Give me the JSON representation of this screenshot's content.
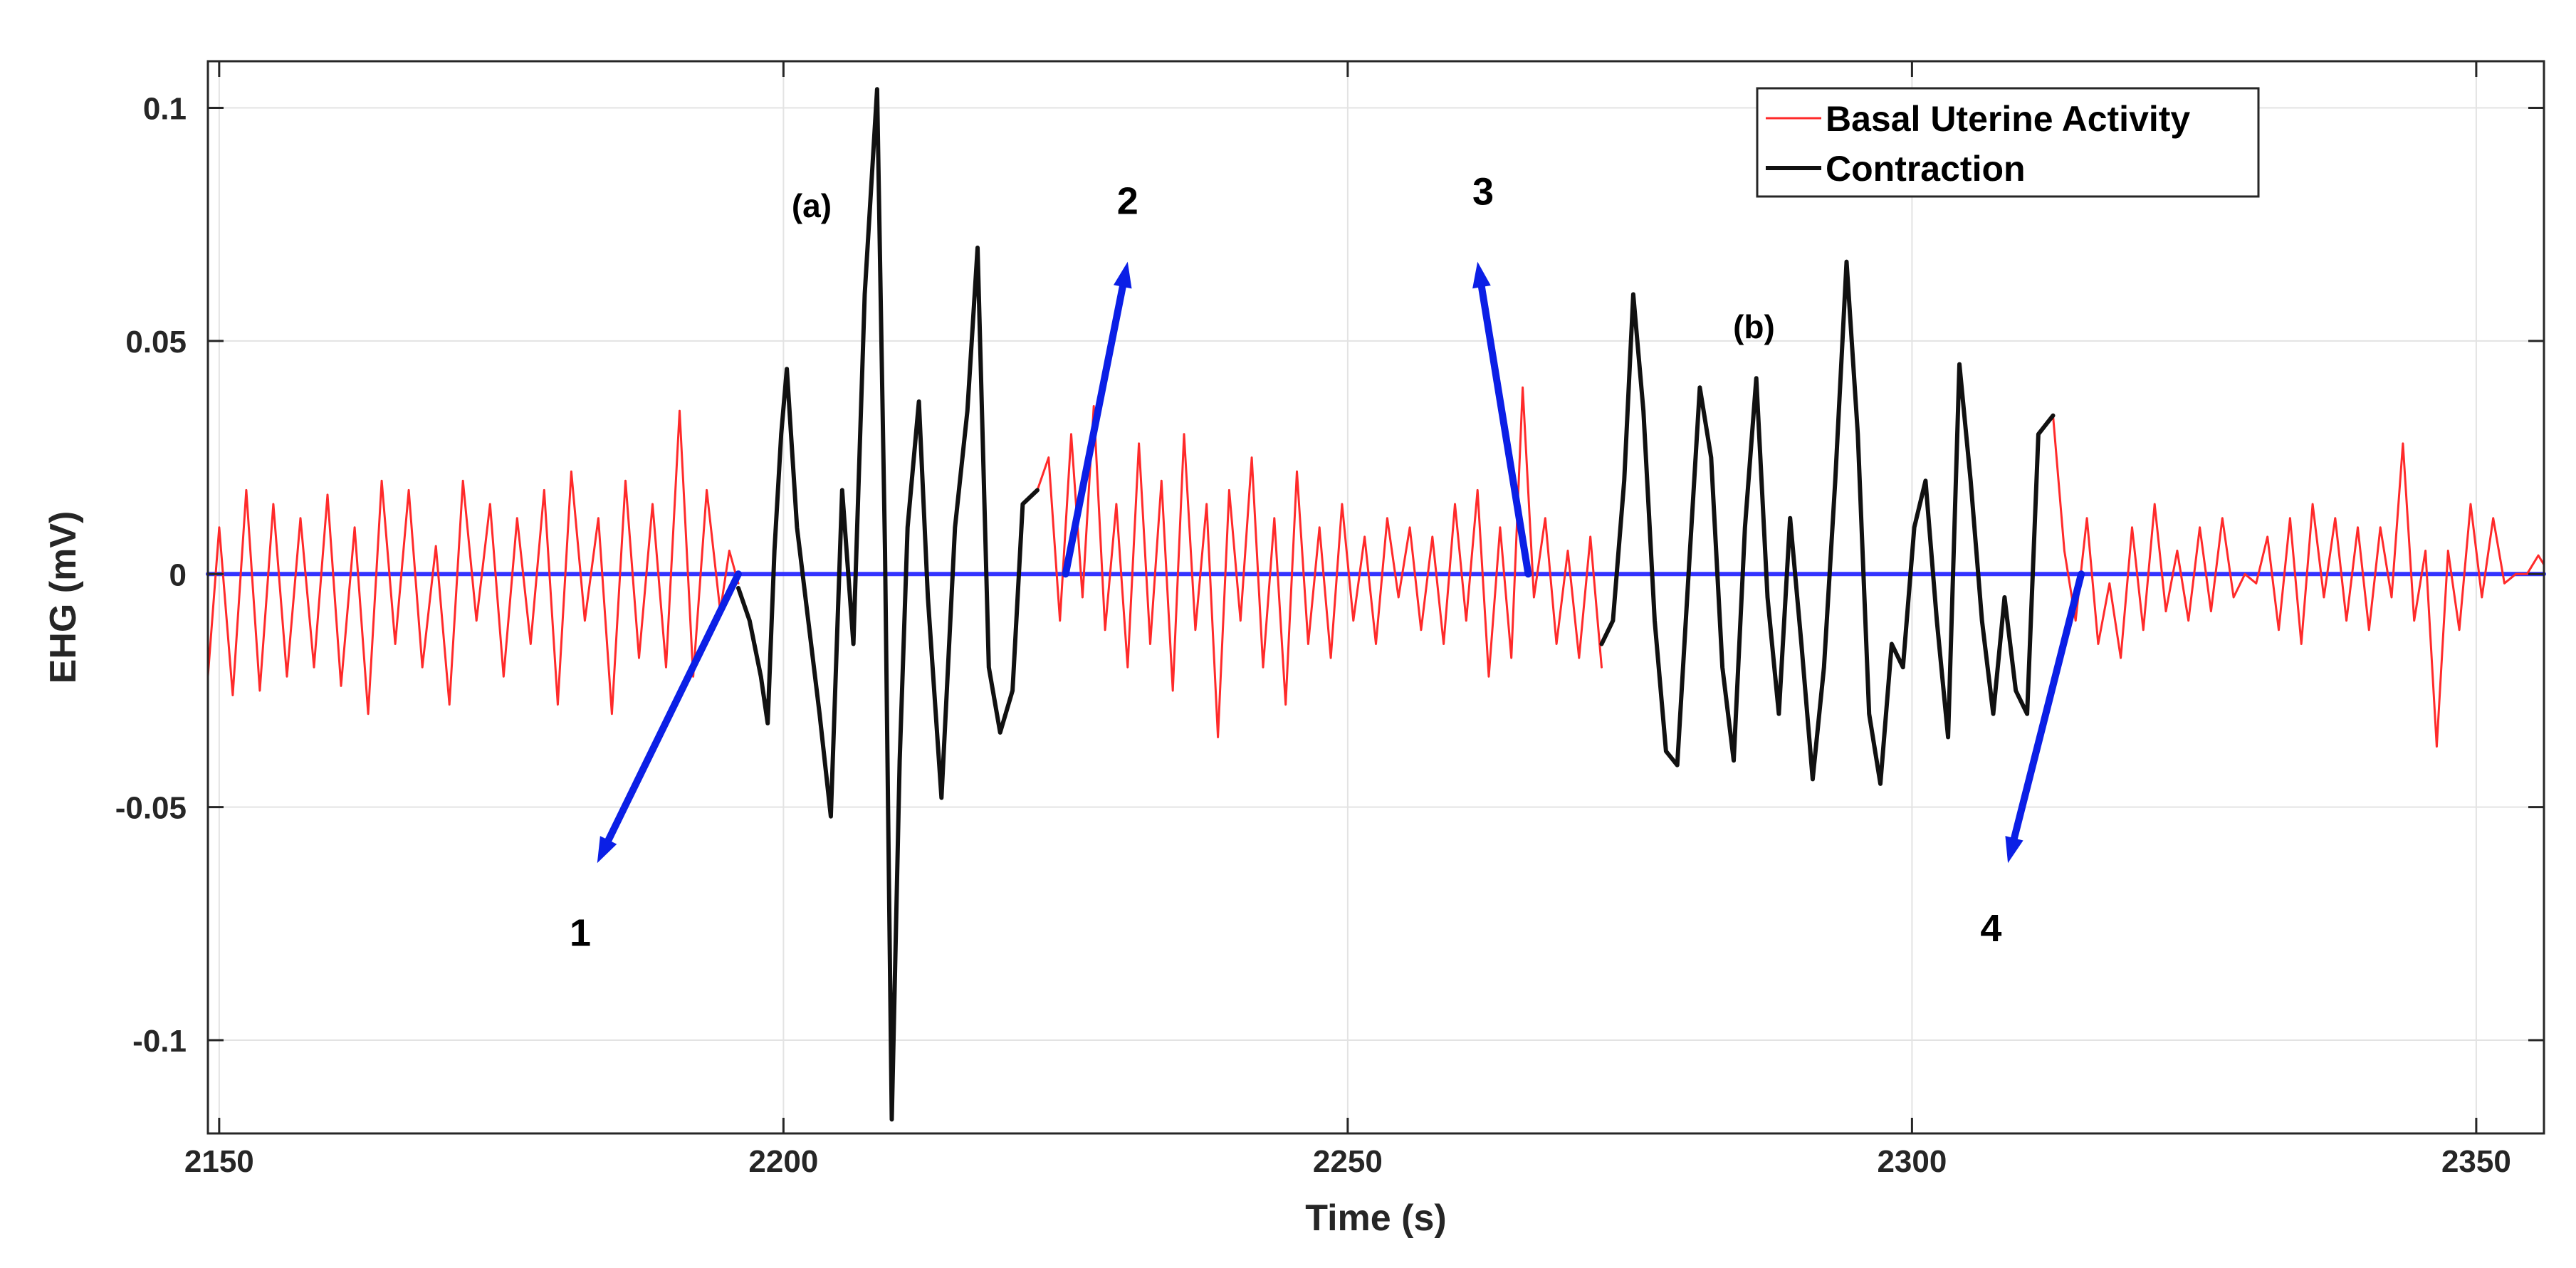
{
  "chart_data": {
    "type": "line",
    "title": "",
    "xlabel": "Time (s)",
    "ylabel": "EHG (mV)",
    "xlim": [
      2149,
      2356
    ],
    "ylim": [
      -0.12,
      0.11
    ],
    "xticks": [
      2150,
      2200,
      2250,
      2300,
      2350
    ],
    "xtick_labels": [
      "2150",
      "2200",
      "2250",
      "2300",
      "2350"
    ],
    "yticks": [
      0.1,
      0.05,
      0,
      -0.05,
      -0.1
    ],
    "ytick_labels": [
      "0.1",
      "0.05",
      "0",
      "-0.05",
      "-0.1"
    ],
    "grid": true,
    "legend_position": "top-right",
    "colors": {
      "basal": "#ff2a2a",
      "contraction": "#111111",
      "baseline": "#3333ff",
      "arrow": "#0b1fe6",
      "grid": "#e3e3e3",
      "axis": "#262626"
    },
    "series": [
      {
        "name": "Basal Uterine Activity",
        "color": "#ff2a2a",
        "segments": [
          {
            "x": [
              2149,
              2150,
              2151.2,
              2152.4,
              2153.6,
              2154.8,
              2156,
              2157.2,
              2158.4,
              2159.6,
              2160.8,
              2162,
              2163.2,
              2164.4,
              2165.6,
              2166.8,
              2168,
              2169.2,
              2170.4,
              2171.6,
              2172.8,
              2174,
              2175.2,
              2176.4,
              2177.6,
              2178.8,
              2180,
              2181.2,
              2182.4,
              2183.6,
              2184.8,
              2186,
              2187.2,
              2188.4,
              2189.6,
              2190.8,
              2192,
              2193.2,
              2194.4,
              2195.2,
              2196
            ],
            "y": [
              -0.022,
              0.01,
              -0.026,
              0.018,
              -0.025,
              0.015,
              -0.022,
              0.012,
              -0.02,
              0.017,
              -0.024,
              0.01,
              -0.03,
              0.02,
              -0.015,
              0.018,
              -0.02,
              0.006,
              -0.028,
              0.02,
              -0.01,
              0.015,
              -0.022,
              0.012,
              -0.015,
              0.018,
              -0.028,
              0.022,
              -0.01,
              0.012,
              -0.03,
              0.02,
              -0.018,
              0.015,
              -0.02,
              0.035,
              -0.022,
              0.018,
              -0.008,
              0.005,
              -0.002
            ]
          },
          {
            "x": [
              2222.5,
              2223.5,
              2224.5,
              2225.5,
              2226.5,
              2227.5,
              2228.5,
              2229.5,
              2230.5,
              2231.5,
              2232.5,
              2233.5,
              2234.5,
              2235.5,
              2236.5,
              2237.5,
              2238.5,
              2239.5,
              2240.5,
              2241.5,
              2242.5,
              2243.5,
              2244.5,
              2245.5,
              2246.5,
              2247.5,
              2248.5,
              2249.5,
              2250.5,
              2251.5,
              2252.5,
              2253.5,
              2254.5,
              2255.5,
              2256.5,
              2257.5,
              2258.5,
              2259.5,
              2260.5,
              2261.5,
              2262.5,
              2263.5,
              2264.5,
              2265.5,
              2266.5,
              2267.5,
              2268.5,
              2269.5,
              2270.5,
              2271.5,
              2272.5
            ],
            "y": [
              0.018,
              0.025,
              -0.01,
              0.03,
              -0.005,
              0.036,
              -0.012,
              0.015,
              -0.02,
              0.028,
              -0.015,
              0.02,
              -0.025,
              0.03,
              -0.012,
              0.015,
              -0.035,
              0.018,
              -0.01,
              0.025,
              -0.02,
              0.012,
              -0.028,
              0.022,
              -0.015,
              0.01,
              -0.018,
              0.015,
              -0.01,
              0.008,
              -0.015,
              0.012,
              -0.005,
              0.01,
              -0.012,
              0.008,
              -0.015,
              0.015,
              -0.01,
              0.018,
              -0.022,
              0.01,
              -0.018,
              0.04,
              -0.005,
              0.012,
              -0.015,
              0.005,
              -0.018,
              0.008,
              -0.02
            ]
          },
          {
            "x": [
              2312.5,
              2313.5,
              2314.5,
              2315.5,
              2316.5,
              2317.5,
              2318.5,
              2319.5,
              2320.5,
              2321.5,
              2322.5,
              2323.5,
              2324.5,
              2325.5,
              2326.5,
              2327.5,
              2328.5,
              2329.5,
              2330.5,
              2331.5,
              2332.5,
              2333.5,
              2334.5,
              2335.5,
              2336.5,
              2337.5,
              2338.5,
              2339.5,
              2340.5,
              2341.5,
              2342.5,
              2343.5,
              2344.5,
              2345.5,
              2346.5,
              2347.5,
              2348.5,
              2349.5,
              2350.5,
              2351.5,
              2352.5,
              2353.5,
              2354.5,
              2355.5,
              2356
            ],
            "y": [
              0.034,
              0.005,
              -0.01,
              0.012,
              -0.015,
              -0.002,
              -0.018,
              0.01,
              -0.012,
              0.015,
              -0.008,
              0.005,
              -0.01,
              0.01,
              -0.008,
              0.012,
              -0.005,
              0.0,
              -0.002,
              0.008,
              -0.012,
              0.012,
              -0.015,
              0.015,
              -0.005,
              0.012,
              -0.01,
              0.01,
              -0.012,
              0.01,
              -0.005,
              0.028,
              -0.01,
              0.005,
              -0.037,
              0.005,
              -0.012,
              0.015,
              -0.005,
              0.012,
              -0.002,
              0.0,
              0.0,
              0.004,
              0.002
            ]
          }
        ]
      },
      {
        "name": "Contraction",
        "color": "#111111",
        "segments": [
          {
            "x": [
              2196,
              2197,
              2198,
              2198.6,
              2199.2,
              2199.8,
              2200.3,
              2201.2,
              2202.2,
              2203.2,
              2204.2,
              2205.2,
              2206.2,
              2207.2,
              2208.3,
              2209,
              2209.6,
              2210.3,
              2211,
              2212,
              2212.8,
              2214,
              2215.2,
              2216.3,
              2217.2,
              2218.2,
              2219.2,
              2220.3,
              2221.2,
              2222.5
            ],
            "y": [
              -0.003,
              -0.01,
              -0.022,
              -0.032,
              0.005,
              0.03,
              0.044,
              0.01,
              -0.01,
              -0.03,
              -0.052,
              0.018,
              -0.015,
              0.06,
              0.104,
              0.005,
              -0.117,
              -0.04,
              0.01,
              0.037,
              -0.005,
              -0.048,
              0.01,
              0.035,
              0.07,
              -0.02,
              -0.034,
              -0.025,
              0.015,
              0.018
            ]
          },
          {
            "x": [
              2272.5,
              2273.5,
              2274.5,
              2275.3,
              2276.2,
              2277.2,
              2278.2,
              2279.2,
              2280.2,
              2281.2,
              2282.2,
              2283.2,
              2284.2,
              2285.2,
              2286.2,
              2287.2,
              2288.2,
              2289.2,
              2290.2,
              2291.2,
              2292.2,
              2293.2,
              2294.2,
              2295.2,
              2296.2,
              2297.2,
              2298.2,
              2299.2,
              2300.2,
              2301.2,
              2302.2,
              2303.2,
              2304.2,
              2305.2,
              2306.2,
              2307.2,
              2308.2,
              2309.2,
              2310.2,
              2311.2,
              2312.5
            ],
            "y": [
              -0.015,
              -0.01,
              0.02,
              0.06,
              0.035,
              -0.01,
              -0.038,
              -0.041,
              0.0,
              0.04,
              0.025,
              -0.02,
              -0.04,
              0.01,
              0.042,
              -0.005,
              -0.03,
              0.012,
              -0.015,
              -0.044,
              -0.02,
              0.02,
              0.067,
              0.03,
              -0.03,
              -0.045,
              -0.015,
              -0.02,
              0.01,
              0.02,
              -0.01,
              -0.035,
              0.045,
              0.02,
              -0.01,
              -0.03,
              -0.005,
              -0.025,
              -0.03,
              0.03,
              0.034
            ]
          }
        ]
      },
      {
        "name": "baseline",
        "color": "#3333ff",
        "segments": [
          {
            "x": [
              2149,
              2356
            ],
            "y": [
              0,
              0
            ]
          }
        ]
      }
    ],
    "legend": [
      "Basal Uterine Activity",
      "Contraction"
    ],
    "annotations": [
      {
        "kind": "arrow",
        "label": "1",
        "from": [
          2196,
          0
        ],
        "to": [
          2183.5,
          -0.062
        ],
        "label_at": [
          2182,
          -0.077
        ]
      },
      {
        "kind": "arrow",
        "label": "2",
        "from": [
          2225,
          0
        ],
        "to": [
          2230.5,
          0.067
        ],
        "label_at": [
          2230.5,
          0.08
        ]
      },
      {
        "kind": "arrow",
        "label": "3",
        "from": [
          2266,
          0
        ],
        "to": [
          2261.5,
          0.067
        ],
        "label_at": [
          2262,
          0.082
        ]
      },
      {
        "kind": "arrow",
        "label": "4",
        "from": [
          2315,
          0
        ],
        "to": [
          2308.5,
          -0.062
        ],
        "label_at": [
          2307,
          -0.076
        ]
      },
      {
        "kind": "text",
        "label": "(a)",
        "at": [
          2202.5,
          0.079
        ]
      },
      {
        "kind": "text",
        "label": "(b)",
        "at": [
          2286,
          0.053
        ]
      }
    ]
  }
}
